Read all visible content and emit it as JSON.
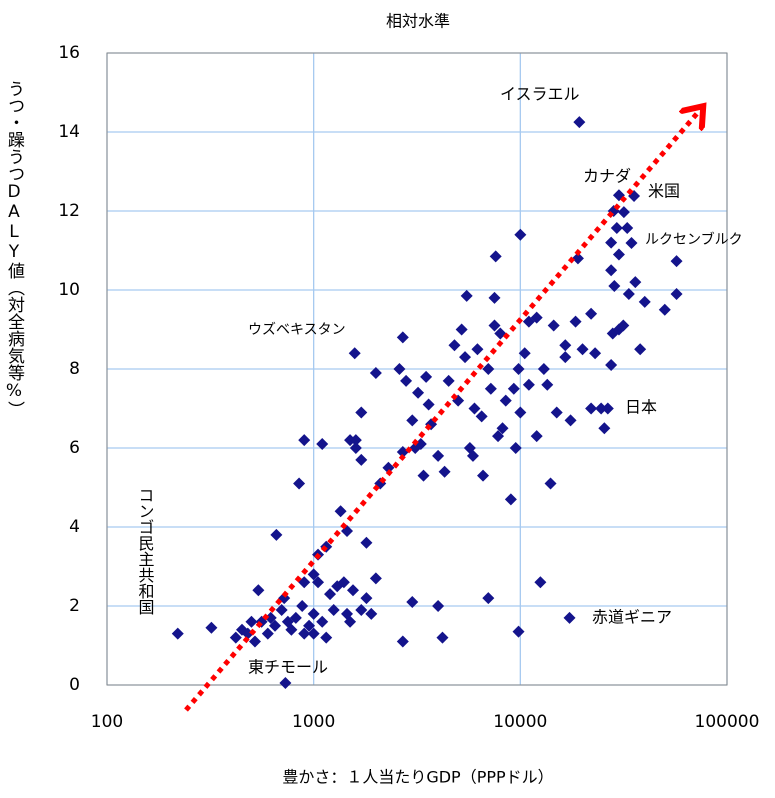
{
  "chart_data": {
    "type": "scatter",
    "title": "相対水準",
    "xlabel": "豊かさ：１人当たりGDP（PPPドル）",
    "ylabel": "うつ・躁うつDALY値（対全病気等%）",
    "log_x": true,
    "grid": true,
    "color": "#14148c",
    "xlim": [
      100,
      100000
    ],
    "xticks": [
      100,
      1000,
      10000,
      100000
    ],
    "ylim": [
      0,
      16
    ],
    "yticks": [
      0,
      2,
      4,
      6,
      8,
      10,
      12,
      14,
      16
    ],
    "annotations": [
      "イスラエル",
      "カナダ",
      "米国",
      "ルクセンブルク",
      "ウズベキスタン",
      "日本",
      "コンゴ民主共和国",
      "赤道ギニア",
      "東チモール"
    ],
    "x": [
      19300,
      30000,
      35500,
      57000,
      28300,
      31700,
      29300,
      32900,
      27500,
      34500,
      30000,
      27500,
      220,
      320,
      420,
      450,
      480,
      500,
      520,
      540,
      560,
      600,
      620,
      650,
      700,
      720,
      750,
      780,
      820,
      880,
      900,
      950,
      1000,
      1000,
      1050,
      1100,
      1150,
      1200,
      1250,
      1300,
      1400,
      1450,
      1500,
      1550,
      1700,
      1800,
      1900,
      2000,
      2700,
      3000,
      4000,
      4200,
      7000,
      9800,
      12500,
      17300,
      730,
      900,
      1050,
      1000,
      660,
      1150,
      1350,
      1800,
      1450,
      850,
      900,
      1100,
      1500,
      1600,
      1700,
      1700,
      1600,
      1580,
      2000,
      2100,
      2300,
      2600,
      2700,
      2700,
      2800,
      3000,
      3100,
      3200,
      3300,
      3400,
      3500,
      3600,
      3700,
      4000,
      4300,
      4500,
      4800,
      5000,
      5200,
      5400,
      5500,
      5700,
      5900,
      6000,
      6200,
      6500,
      6600,
      7000,
      7200,
      7500,
      7500,
      7600,
      7800,
      8000,
      8200,
      8500,
      9000,
      9300,
      9500,
      9800,
      10000,
      10000,
      10500,
      11000,
      11000,
      12000,
      12000,
      13000,
      13500,
      14000,
      14500,
      15000,
      16500,
      17500,
      18500,
      19000,
      20000,
      22000,
      23000,
      24600,
      25500,
      26500,
      27500,
      28000,
      28500,
      30000,
      31500,
      33500,
      36000,
      38000,
      40000,
      57000,
      50000,
      22000,
      16500
    ],
    "values": [
      14.25,
      12.4,
      12.38,
      10.73,
      12.0,
      11.97,
      11.57,
      11.57,
      11.2,
      11.19,
      10.9,
      10.5,
      1.3,
      1.45,
      1.2,
      1.4,
      1.3,
      1.6,
      1.1,
      2.4,
      1.6,
      1.3,
      1.7,
      1.5,
      1.9,
      2.2,
      1.6,
      1.4,
      1.7,
      2.0,
      1.3,
      1.5,
      1.8,
      1.3,
      2.6,
      1.6,
      1.2,
      2.3,
      1.9,
      2.5,
      2.6,
      1.8,
      1.6,
      2.4,
      1.9,
      2.2,
      1.8,
      2.7,
      1.1,
      2.1,
      2.0,
      1.2,
      2.2,
      1.35,
      2.6,
      1.7,
      0.05,
      2.6,
      3.3,
      2.8,
      3.8,
      3.5,
      4.4,
      3.6,
      3.9,
      5.1,
      6.2,
      6.1,
      6.2,
      6.2,
      6.9,
      5.7,
      6.0,
      8.4,
      7.9,
      5.1,
      5.5,
      8.0,
      8.8,
      5.9,
      7.7,
      6.7,
      6.0,
      7.4,
      6.1,
      5.3,
      7.8,
      7.1,
      6.6,
      5.8,
      5.4,
      7.7,
      8.6,
      7.2,
      9.0,
      8.3,
      9.85,
      6.0,
      5.8,
      7.0,
      8.5,
      6.8,
      5.3,
      8.0,
      7.5,
      9.1,
      9.8,
      10.85,
      6.3,
      8.9,
      6.5,
      7.2,
      4.7,
      7.5,
      6.0,
      8.0,
      11.4,
      6.9,
      8.4,
      9.2,
      7.6,
      9.3,
      6.3,
      8.0,
      7.6,
      5.1,
      9.1,
      6.9,
      8.3,
      6.7,
      9.2,
      10.8,
      8.5,
      7.0,
      8.4,
      7.0,
      6.5,
      7.0,
      8.1,
      8.9,
      10.1,
      9.0,
      9.1,
      9.9,
      10.2,
      8.5,
      9.7,
      9.9,
      9.5,
      9.4,
      8.6
    ]
  }
}
